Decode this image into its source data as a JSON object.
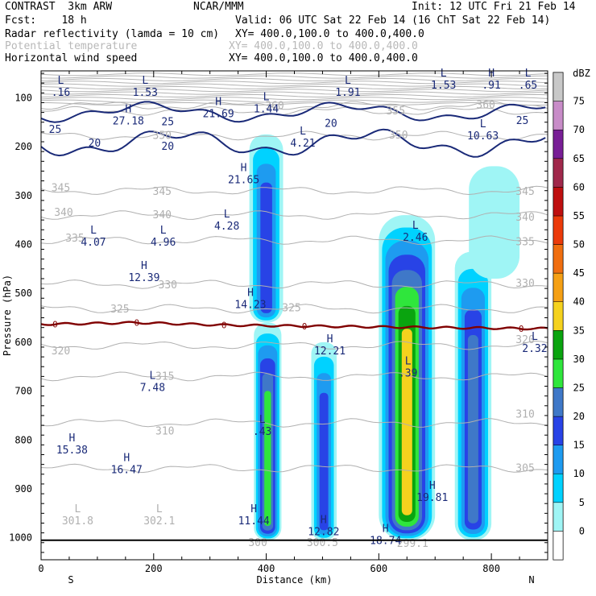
{
  "header": {
    "model": "CONTRAST  3km ARW",
    "org": "NCAR/MMM",
    "init": "Init: 12 UTC Fri 21 Feb 14",
    "fcst": "Fcst:    18 h",
    "valid": "Valid: 06 UTC Sat 22 Feb 14 (16 ChT Sat 22 Feb 14)",
    "fields": [
      {
        "name": "Radar reflectivity (lamda = 10 cm)",
        "xy": "XY= 400.0,100.0 to 400.0,400.0",
        "muted": false
      },
      {
        "name": "Potential temperature",
        "xy": "XY= 400.0,100.0 to 400.0,400.0",
        "muted": true
      },
      {
        "name": "Horizontal wind speed",
        "xy": "XY= 400.0,100.0 to 400.0,400.0",
        "muted": false
      }
    ]
  },
  "chart_data": {
    "type": "heatmap",
    "title": "",
    "xlabel": "Distance (km)",
    "ylabel": "Pressure (hPa)",
    "xlim": [
      0,
      900
    ],
    "ylim": [
      1045,
      45
    ],
    "xticks": [
      0,
      200,
      400,
      600,
      800
    ],
    "yticks": [
      100,
      200,
      300,
      400,
      500,
      600,
      700,
      800,
      900,
      1000
    ],
    "x_end_labels": {
      "left": "S",
      "right": "N"
    },
    "colorbar": {
      "unit": "dBZ",
      "levels": [
        0,
        5,
        10,
        15,
        20,
        25,
        30,
        35,
        40,
        45,
        50,
        55,
        60,
        65,
        70,
        75
      ],
      "colors": [
        "#ffffff",
        "#9ff5f5",
        "#00d2ff",
        "#1e9bf0",
        "#2843e6",
        "#3f78c8",
        "#2fe63c",
        "#0aa40f",
        "#f5d21e",
        "#f5a014",
        "#f06e0f",
        "#eb3a0a",
        "#be0f0f",
        "#a0284b",
        "#781e96",
        "#c88cc8",
        "#c8c8c8"
      ]
    },
    "reflectivity_cells": [
      {
        "x_range": [
          370,
          430
        ],
        "p_range": [
          175,
          560
        ],
        "max_dbz": 20
      },
      {
        "x_range": [
          378,
          427
        ],
        "p_range": [
          560,
          1005
        ],
        "max_dbz": 30
      },
      {
        "x_range": [
          480,
          525
        ],
        "p_range": [
          600,
          1005
        ],
        "max_dbz": 20
      },
      {
        "x_range": [
          600,
          700
        ],
        "p_range": [
          340,
          1005
        ],
        "max_dbz": 40
      },
      {
        "x_range": [
          735,
          800
        ],
        "p_range": [
          415,
          1005
        ],
        "max_dbz": 25
      },
      {
        "x_range": [
          760,
          850
        ],
        "p_range": [
          240,
          470
        ],
        "max_dbz": 5
      }
    ],
    "theta_contour_labels": [
      {
        "text": "360",
        "x": 415,
        "p": 117
      },
      {
        "text": "355",
        "x": 630,
        "p": 127
      },
      {
        "text": "360",
        "x": 790,
        "p": 115
      },
      {
        "text": "350",
        "x": 215,
        "p": 178
      },
      {
        "text": "350",
        "x": 635,
        "p": 177
      },
      {
        "text": "345",
        "x": 35,
        "p": 285
      },
      {
        "text": "345",
        "x": 215,
        "p": 292
      },
      {
        "text": "345",
        "x": 860,
        "p": 292
      },
      {
        "text": "340",
        "x": 40,
        "p": 335
      },
      {
        "text": "340",
        "x": 215,
        "p": 340
      },
      {
        "text": "340",
        "x": 860,
        "p": 345
      },
      {
        "text": "335",
        "x": 60,
        "p": 388
      },
      {
        "text": "335",
        "x": 860,
        "p": 395
      },
      {
        "text": "330",
        "x": 225,
        "p": 483
      },
      {
        "text": "330",
        "x": 860,
        "p": 480
      },
      {
        "text": "325",
        "x": 140,
        "p": 533
      },
      {
        "text": "325",
        "x": 445,
        "p": 530
      },
      {
        "text": "320",
        "x": 35,
        "p": 618
      },
      {
        "text": "320",
        "x": 860,
        "p": 595
      },
      {
        "text": "315",
        "x": 220,
        "p": 670
      },
      {
        "text": "310",
        "x": 220,
        "p": 782
      },
      {
        "text": "310",
        "x": 860,
        "p": 748
      },
      {
        "text": "305",
        "x": 860,
        "p": 858
      },
      {
        "text": "300",
        "x": 385,
        "p": 1010
      },
      {
        "text": "300.5",
        "x": 500,
        "p": 1010
      },
      {
        "text": "299.1",
        "x": 660,
        "p": 1012
      }
    ],
    "zero_isotherm_labels": [
      {
        "text": "0",
        "x": 25,
        "p": 563
      },
      {
        "text": "0",
        "x": 170,
        "p": 560
      },
      {
        "text": "0",
        "x": 325,
        "p": 565
      },
      {
        "text": "0",
        "x": 468,
        "p": 567
      },
      {
        "text": "0",
        "x": 853,
        "p": 572
      }
    ],
    "wind_contour_labels": [
      {
        "text": "25",
        "x": 25,
        "p": 165
      },
      {
        "text": "25",
        "x": 225,
        "p": 150
      },
      {
        "text": "20",
        "x": 95,
        "p": 193
      },
      {
        "text": "20",
        "x": 225,
        "p": 200
      },
      {
        "text": "20",
        "x": 515,
        "p": 153
      },
      {
        "text": "25",
        "x": 855,
        "p": 147
      }
    ],
    "extrema": [
      {
        "type": "L",
        "value": ".16",
        "x": 35,
        "p": 86
      },
      {
        "type": "L",
        "value": "1.53",
        "x": 185,
        "p": 86
      },
      {
        "type": "H",
        "value": "27.18",
        "x": 155,
        "p": 145
      },
      {
        "type": "H",
        "value": "21.69",
        "x": 315,
        "p": 130
      },
      {
        "type": "L",
        "value": "1.44",
        "x": 400,
        "p": 120
      },
      {
        "type": "L",
        "value": "1.91",
        "x": 545,
        "p": 86
      },
      {
        "type": "L",
        "value": "1.53",
        "x": 715,
        "p": 71
      },
      {
        "type": "H",
        "value": ".91",
        "x": 800,
        "p": 71
      },
      {
        "type": "L",
        "value": ".65",
        "x": 865,
        "p": 71
      },
      {
        "type": "L",
        "value": "10.63",
        "x": 785,
        "p": 175
      },
      {
        "type": "L",
        "value": "4.21",
        "x": 465,
        "p": 190
      },
      {
        "type": "H",
        "value": "21.65",
        "x": 360,
        "p": 265
      },
      {
        "type": "L",
        "value": "4.28",
        "x": 330,
        "p": 360
      },
      {
        "type": "L",
        "value": "4.07",
        "x": 93,
        "p": 393
      },
      {
        "type": "L",
        "value": "4.96",
        "x": 217,
        "p": 393
      },
      {
        "type": "L",
        "value": "2.46",
        "x": 665,
        "p": 383
      },
      {
        "type": "H",
        "value": "12.39",
        "x": 183,
        "p": 465
      },
      {
        "type": "H",
        "value": "14.23",
        "x": 372,
        "p": 520
      },
      {
        "type": "H",
        "value": "12.21",
        "x": 513,
        "p": 615
      },
      {
        "type": "L",
        "value": "2.32",
        "x": 877,
        "p": 610
      },
      {
        "type": "L",
        "value": ".39",
        "x": 652,
        "p": 660
      },
      {
        "type": "L",
        "value": "7.48",
        "x": 198,
        "p": 690
      },
      {
        "type": "L",
        "value": ".43",
        "x": 393,
        "p": 780
      },
      {
        "type": "H",
        "value": "15.38",
        "x": 55,
        "p": 818
      },
      {
        "type": "H",
        "value": "16.47",
        "x": 152,
        "p": 858
      },
      {
        "type": "H",
        "value": "19.81",
        "x": 695,
        "p": 915
      },
      {
        "type": "L",
        "value": "301.8",
        "x": 65,
        "p": 963
      },
      {
        "type": "L",
        "value": "302.1",
        "x": 210,
        "p": 963
      },
      {
        "type": "H",
        "value": "11.44",
        "x": 378,
        "p": 963
      },
      {
        "type": "H",
        "value": "12.82",
        "x": 502,
        "p": 985
      },
      {
        "type": "H",
        "value": "18.74",
        "x": 612,
        "p": 1003
      }
    ]
  }
}
